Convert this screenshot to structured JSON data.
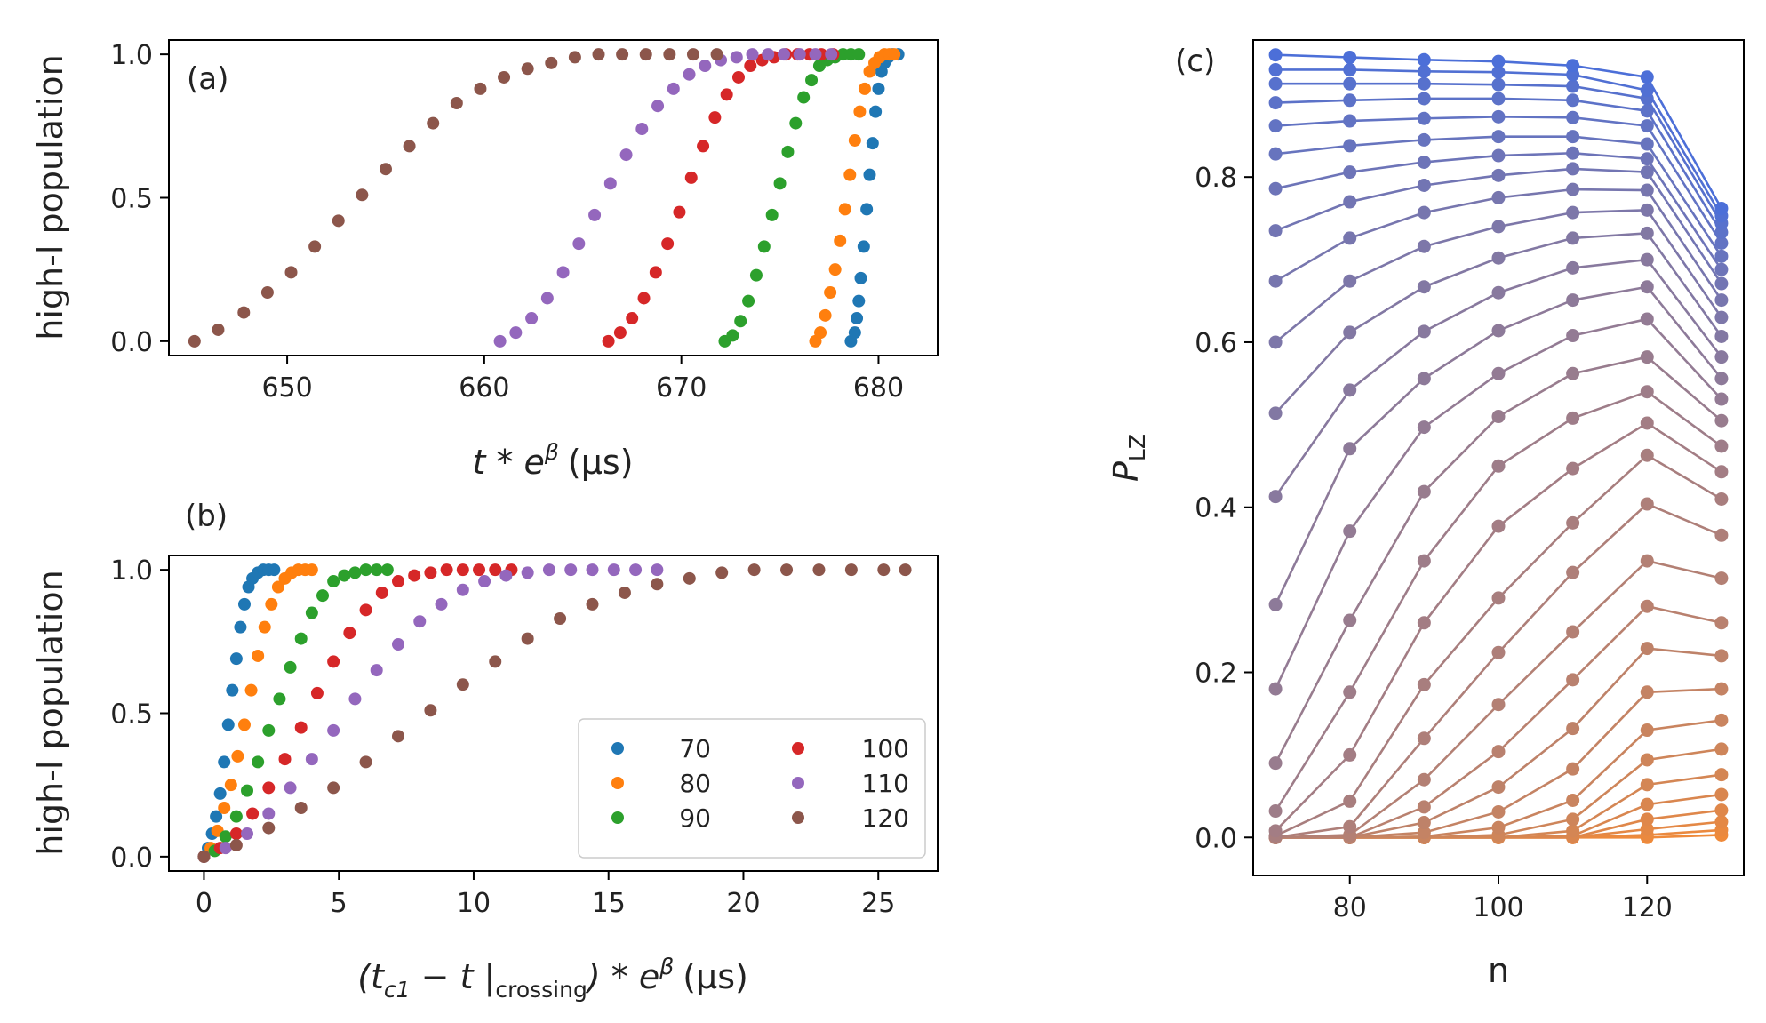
{
  "chart_data": [
    {
      "id": "a",
      "type": "scatter",
      "panel_label": "(a)",
      "xlabel_main": "t * e",
      "xlabel_sup": "β",
      "xlabel_unit": "(μs)",
      "ylabel": "high-l population",
      "xlim": [
        644,
        683
      ],
      "ylim": [
        -0.05,
        1.05
      ],
      "xticks": [
        650,
        660,
        670,
        680
      ],
      "yticks": [
        0.0,
        0.5,
        1.0
      ],
      "series": [
        {
          "name": "70",
          "color": "#1f77b4",
          "x": [
            678.6,
            678.8,
            678.9,
            679.0,
            679.1,
            679.25,
            679.4,
            679.55,
            679.7,
            679.85,
            680.0,
            680.15,
            680.3,
            680.5,
            680.7,
            681.0
          ],
          "y": [
            0.0,
            0.03,
            0.08,
            0.14,
            0.22,
            0.33,
            0.46,
            0.58,
            0.69,
            0.8,
            0.88,
            0.94,
            0.97,
            0.99,
            1.0,
            1.0
          ]
        },
        {
          "name": "80",
          "color": "#ff7f0e",
          "x": [
            676.8,
            677.05,
            677.3,
            677.55,
            677.8,
            678.05,
            678.3,
            678.55,
            678.8,
            679.05,
            679.3,
            679.55,
            679.8,
            680.05,
            680.3,
            680.55,
            680.8
          ],
          "y": [
            0.0,
            0.03,
            0.09,
            0.17,
            0.25,
            0.35,
            0.46,
            0.58,
            0.7,
            0.8,
            0.88,
            0.94,
            0.97,
            0.99,
            1.0,
            1.0,
            1.0
          ]
        },
        {
          "name": "90",
          "color": "#2ca02c",
          "x": [
            672.2,
            672.6,
            673.0,
            673.4,
            673.8,
            674.2,
            674.6,
            675.0,
            675.4,
            675.8,
            676.2,
            676.6,
            677.0,
            677.4,
            677.8,
            678.2,
            678.6,
            679.0
          ],
          "y": [
            0.0,
            0.02,
            0.07,
            0.14,
            0.23,
            0.33,
            0.44,
            0.55,
            0.66,
            0.76,
            0.85,
            0.91,
            0.96,
            0.98,
            0.99,
            1.0,
            1.0,
            1.0
          ]
        },
        {
          "name": "100",
          "color": "#d62728",
          "x": [
            666.3,
            666.9,
            667.5,
            668.1,
            668.7,
            669.3,
            669.9,
            670.5,
            671.1,
            671.7,
            672.3,
            672.9,
            673.5,
            674.1,
            674.7,
            675.3,
            675.9,
            676.5,
            677.1,
            677.7
          ],
          "y": [
            0.0,
            0.03,
            0.08,
            0.15,
            0.24,
            0.34,
            0.45,
            0.57,
            0.68,
            0.78,
            0.86,
            0.92,
            0.96,
            0.98,
            0.99,
            1.0,
            1.0,
            1.0,
            1.0,
            1.0
          ]
        },
        {
          "name": "110",
          "color": "#9467bd",
          "x": [
            660.8,
            661.6,
            662.4,
            663.2,
            664.0,
            664.8,
            665.6,
            666.4,
            667.2,
            668.0,
            668.8,
            669.6,
            670.4,
            671.2,
            672.0,
            672.8,
            673.6,
            674.4,
            675.2,
            676.0,
            676.8,
            677.6
          ],
          "y": [
            0.0,
            0.03,
            0.08,
            0.15,
            0.24,
            0.34,
            0.44,
            0.55,
            0.65,
            0.74,
            0.82,
            0.88,
            0.93,
            0.96,
            0.98,
            0.99,
            1.0,
            1.0,
            1.0,
            1.0,
            1.0,
            1.0
          ]
        },
        {
          "name": "120",
          "color": "#8c564b",
          "x": [
            645.3,
            646.5,
            647.8,
            649.0,
            650.2,
            651.4,
            652.6,
            653.8,
            655.0,
            656.2,
            657.4,
            658.6,
            659.8,
            661.0,
            662.2,
            663.4,
            664.6,
            665.8,
            667.0,
            668.2,
            669.4,
            670.6,
            671.8
          ],
          "y": [
            0.0,
            0.04,
            0.1,
            0.17,
            0.24,
            0.33,
            0.42,
            0.51,
            0.6,
            0.68,
            0.76,
            0.83,
            0.88,
            0.92,
            0.95,
            0.97,
            0.99,
            1.0,
            1.0,
            1.0,
            1.0,
            1.0,
            1.0
          ]
        }
      ]
    },
    {
      "id": "b",
      "type": "scatter",
      "panel_label": "(b)",
      "xlabel_main": "(t",
      "xlabel_sub1": "c1",
      "xlabel_mid": " − t |",
      "xlabel_sub2": "crossing",
      "xlabel_end": ") * e",
      "xlabel_sup": "β",
      "xlabel_unit": "(μs)",
      "ylabel": "high-l population",
      "xlim": [
        -1.3,
        27.2
      ],
      "ylim": [
        -0.05,
        1.05
      ],
      "xticks": [
        0,
        5,
        10,
        15,
        20,
        25
      ],
      "yticks": [
        0.0,
        0.5,
        1.0
      ],
      "legend": {
        "position": "lower-right",
        "columns": 2
      },
      "series": [
        {
          "name": "70",
          "color": "#1f77b4",
          "x": [
            0.0,
            0.15,
            0.3,
            0.45,
            0.6,
            0.75,
            0.9,
            1.05,
            1.2,
            1.35,
            1.5,
            1.65,
            1.8,
            2.0,
            2.2,
            2.4,
            2.6
          ],
          "y": [
            0.0,
            0.03,
            0.08,
            0.14,
            0.22,
            0.33,
            0.46,
            0.58,
            0.69,
            0.8,
            0.88,
            0.94,
            0.97,
            0.99,
            1.0,
            1.0,
            1.0
          ]
        },
        {
          "name": "80",
          "color": "#ff7f0e",
          "x": [
            0.0,
            0.25,
            0.5,
            0.75,
            1.0,
            1.25,
            1.5,
            1.75,
            2.0,
            2.25,
            2.5,
            2.75,
            3.0,
            3.25,
            3.5,
            3.75,
            4.0
          ],
          "y": [
            0.0,
            0.03,
            0.09,
            0.17,
            0.25,
            0.35,
            0.46,
            0.58,
            0.7,
            0.8,
            0.88,
            0.94,
            0.97,
            0.99,
            1.0,
            1.0,
            1.0
          ]
        },
        {
          "name": "90",
          "color": "#2ca02c",
          "x": [
            0.0,
            0.4,
            0.8,
            1.2,
            1.6,
            2.0,
            2.4,
            2.8,
            3.2,
            3.6,
            4.0,
            4.4,
            4.8,
            5.2,
            5.6,
            6.0,
            6.4,
            6.8
          ],
          "y": [
            0.0,
            0.02,
            0.07,
            0.14,
            0.23,
            0.33,
            0.44,
            0.55,
            0.66,
            0.76,
            0.85,
            0.91,
            0.96,
            0.98,
            0.99,
            1.0,
            1.0,
            1.0
          ]
        },
        {
          "name": "100",
          "color": "#d62728",
          "x": [
            0.0,
            0.6,
            1.2,
            1.8,
            2.4,
            3.0,
            3.6,
            4.2,
            4.8,
            5.4,
            6.0,
            6.6,
            7.2,
            7.8,
            8.4,
            9.0,
            9.6,
            10.2,
            10.8,
            11.4
          ],
          "y": [
            0.0,
            0.03,
            0.08,
            0.15,
            0.24,
            0.34,
            0.45,
            0.57,
            0.68,
            0.78,
            0.86,
            0.92,
            0.96,
            0.98,
            0.99,
            1.0,
            1.0,
            1.0,
            1.0,
            1.0
          ]
        },
        {
          "name": "110",
          "color": "#9467bd",
          "x": [
            0.0,
            0.8,
            1.6,
            2.4,
            3.2,
            4.0,
            4.8,
            5.6,
            6.4,
            7.2,
            8.0,
            8.8,
            9.6,
            10.4,
            11.2,
            12.0,
            12.8,
            13.6,
            14.4,
            15.2,
            16.0,
            16.8
          ],
          "y": [
            0.0,
            0.03,
            0.08,
            0.15,
            0.24,
            0.34,
            0.44,
            0.55,
            0.65,
            0.74,
            0.82,
            0.88,
            0.93,
            0.96,
            0.98,
            0.99,
            1.0,
            1.0,
            1.0,
            1.0,
            1.0,
            1.0
          ]
        },
        {
          "name": "120",
          "color": "#8c564b",
          "x": [
            0.0,
            1.2,
            2.4,
            3.6,
            4.8,
            6.0,
            7.2,
            8.4,
            9.6,
            10.8,
            12.0,
            13.2,
            14.4,
            15.6,
            16.8,
            18.0,
            19.2,
            20.4,
            21.6,
            22.8,
            24.0,
            25.2,
            26.0
          ],
          "y": [
            0.0,
            0.04,
            0.1,
            0.17,
            0.24,
            0.33,
            0.42,
            0.51,
            0.6,
            0.68,
            0.76,
            0.83,
            0.88,
            0.92,
            0.95,
            0.97,
            0.99,
            1.0,
            1.0,
            1.0,
            1.0,
            1.0,
            1.0
          ]
        }
      ]
    },
    {
      "id": "c",
      "type": "line",
      "panel_label": "(c)",
      "xlabel": "n",
      "ylabel_main": "P",
      "ylabel_sub": "LZ",
      "xlim": [
        67,
        133
      ],
      "ylim": [
        -0.046,
        0.966
      ],
      "xticks": [
        80,
        100,
        120
      ],
      "yticks": [
        0.0,
        0.2,
        0.4,
        0.6,
        0.8
      ],
      "color_top": "#4c6fd8",
      "color_bottom": "#ef8a3a",
      "x": [
        70,
        80,
        90,
        100,
        110,
        120,
        130
      ],
      "series": [
        [
          0.948,
          0.945,
          0.942,
          0.94,
          0.935,
          0.921,
          0.762
        ],
        [
          0.93,
          0.93,
          0.928,
          0.927,
          0.924,
          0.905,
          0.753
        ],
        [
          0.913,
          0.913,
          0.913,
          0.912,
          0.91,
          0.895,
          0.744
        ],
        [
          0.89,
          0.893,
          0.895,
          0.895,
          0.893,
          0.88,
          0.733
        ],
        [
          0.862,
          0.868,
          0.871,
          0.873,
          0.872,
          0.862,
          0.72
        ],
        [
          0.828,
          0.838,
          0.845,
          0.849,
          0.849,
          0.84,
          0.704
        ],
        [
          0.786,
          0.806,
          0.818,
          0.826,
          0.829,
          0.822,
          0.688
        ],
        [
          0.735,
          0.77,
          0.79,
          0.802,
          0.81,
          0.806,
          0.671
        ],
        [
          0.674,
          0.726,
          0.757,
          0.775,
          0.785,
          0.784,
          0.651
        ],
        [
          0.6,
          0.674,
          0.716,
          0.74,
          0.757,
          0.76,
          0.63
        ],
        [
          0.514,
          0.612,
          0.667,
          0.702,
          0.726,
          0.732,
          0.607
        ],
        [
          0.413,
          0.542,
          0.613,
          0.66,
          0.69,
          0.7,
          0.582
        ],
        [
          0.282,
          0.471,
          0.556,
          0.614,
          0.651,
          0.667,
          0.556
        ],
        [
          0.18,
          0.371,
          0.497,
          0.562,
          0.608,
          0.628,
          0.531
        ],
        [
          0.09,
          0.263,
          0.419,
          0.51,
          0.562,
          0.582,
          0.505
        ],
        [
          0.032,
          0.176,
          0.335,
          0.45,
          0.508,
          0.54,
          0.474
        ],
        [
          0.008,
          0.1,
          0.26,
          0.377,
          0.447,
          0.502,
          0.443
        ],
        [
          0.002,
          0.044,
          0.185,
          0.29,
          0.381,
          0.463,
          0.41
        ],
        [
          0.0,
          0.013,
          0.12,
          0.224,
          0.321,
          0.404,
          0.366
        ],
        [
          0.0,
          0.003,
          0.07,
          0.161,
          0.249,
          0.335,
          0.314
        ],
        [
          0.0,
          0.0,
          0.037,
          0.104,
          0.191,
          0.28,
          0.26
        ],
        [
          0.0,
          0.0,
          0.018,
          0.061,
          0.132,
          0.229,
          0.22
        ],
        [
          0.0,
          0.0,
          0.006,
          0.031,
          0.083,
          0.176,
          0.18
        ],
        [
          0.0,
          0.0,
          0.001,
          0.012,
          0.045,
          0.13,
          0.142
        ],
        [
          0.0,
          0.0,
          0.0,
          0.003,
          0.022,
          0.094,
          0.107
        ],
        [
          0.0,
          0.0,
          0.0,
          0.0,
          0.008,
          0.064,
          0.076
        ],
        [
          0.0,
          0.0,
          0.0,
          0.0,
          0.002,
          0.04,
          0.052
        ],
        [
          0.0,
          0.0,
          0.0,
          0.0,
          0.0,
          0.022,
          0.033
        ],
        [
          0.0,
          0.0,
          0.0,
          0.0,
          0.0,
          0.01,
          0.019
        ],
        [
          0.0,
          0.0,
          0.0,
          0.0,
          0.0,
          0.003,
          0.009
        ],
        [
          0.0,
          0.0,
          0.0,
          0.0,
          0.0,
          0.0,
          0.003
        ]
      ]
    }
  ]
}
